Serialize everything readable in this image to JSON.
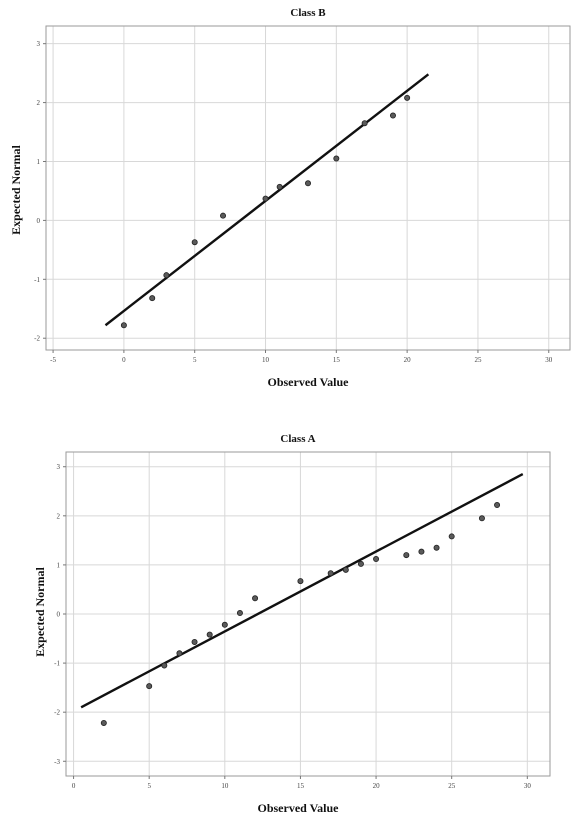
{
  "chart_data": [
    {
      "type": "scatter",
      "title": "Class B",
      "xlabel": "Observed Value",
      "ylabel": "Expected Normal",
      "xlim": [
        -5.5,
        31.5
      ],
      "ylim": [
        -2.2,
        3.3
      ],
      "xticks": [
        -5,
        0,
        5,
        10,
        15,
        20,
        25,
        30
      ],
      "xtick_labels": [
        "-5",
        "0",
        "5",
        "10",
        "15",
        "20",
        "25",
        "30"
      ],
      "yticks": [
        -2,
        -1,
        0,
        1,
        2,
        3
      ],
      "ytick_labels": [
        "-2",
        "-1",
        "0",
        "1",
        "2",
        "3"
      ],
      "grid": true,
      "points": [
        {
          "x": 0,
          "y": -1.78
        },
        {
          "x": 2,
          "y": -1.32
        },
        {
          "x": 3,
          "y": -0.93
        },
        {
          "x": 5,
          "y": -0.37
        },
        {
          "x": 7,
          "y": 0.08
        },
        {
          "x": 10,
          "y": 0.37
        },
        {
          "x": 11,
          "y": 0.57
        },
        {
          "x": 13,
          "y": 0.63
        },
        {
          "x": 15,
          "y": 1.05
        },
        {
          "x": 17,
          "y": 1.65
        },
        {
          "x": 19,
          "y": 1.78
        },
        {
          "x": 20,
          "y": 2.08
        }
      ],
      "fit_line": {
        "x1": -1.3,
        "y1": -1.78,
        "x2": 21.5,
        "y2": 2.48
      }
    },
    {
      "type": "scatter",
      "title": "Class A",
      "xlabel": "Observed Value",
      "ylabel": "Expected Normal",
      "xlim": [
        -0.5,
        31.5
      ],
      "ylim": [
        -3.3,
        3.3
      ],
      "xticks": [
        0,
        5,
        10,
        15,
        20,
        25,
        30
      ],
      "xtick_labels": [
        "0",
        "5",
        "10",
        "15",
        "20",
        "25",
        "30"
      ],
      "yticks": [
        -3,
        -2,
        -1,
        0,
        1,
        2,
        3
      ],
      "ytick_labels": [
        "-3",
        "-2",
        "-1",
        "0",
        "1",
        "2",
        "3"
      ],
      "grid": true,
      "points": [
        {
          "x": 2,
          "y": -2.22
        },
        {
          "x": 5,
          "y": -1.47
        },
        {
          "x": 6,
          "y": -1.05
        },
        {
          "x": 7,
          "y": -0.8
        },
        {
          "x": 8,
          "y": -0.57
        },
        {
          "x": 9,
          "y": -0.42
        },
        {
          "x": 10,
          "y": -0.22
        },
        {
          "x": 11,
          "y": 0.02
        },
        {
          "x": 12,
          "y": 0.32
        },
        {
          "x": 15,
          "y": 0.67
        },
        {
          "x": 17,
          "y": 0.83
        },
        {
          "x": 18,
          "y": 0.9
        },
        {
          "x": 19,
          "y": 1.02
        },
        {
          "x": 20,
          "y": 1.12
        },
        {
          "x": 22,
          "y": 1.2
        },
        {
          "x": 23,
          "y": 1.27
        },
        {
          "x": 24,
          "y": 1.35
        },
        {
          "x": 25,
          "y": 1.58
        },
        {
          "x": 27,
          "y": 1.95
        },
        {
          "x": 28,
          "y": 2.22
        }
      ],
      "fit_line": {
        "x1": 0.5,
        "y1": -1.9,
        "x2": 29.7,
        "y2": 2.85
      }
    }
  ]
}
